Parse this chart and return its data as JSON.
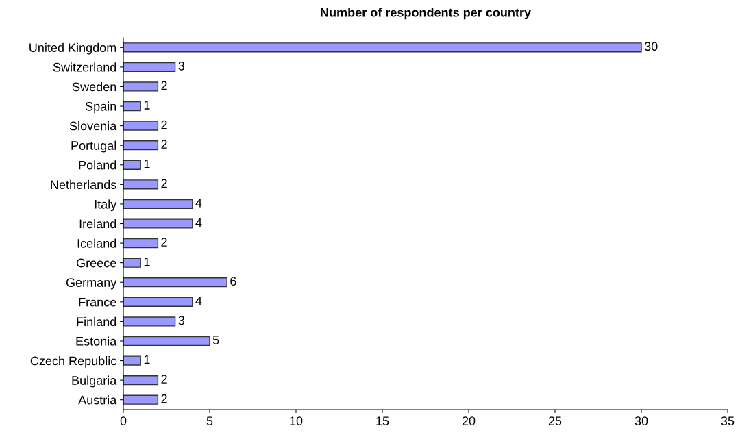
{
  "chart_data": {
    "type": "bar",
    "orientation": "horizontal",
    "title": "Number of respondents per country",
    "categories": [
      "United Kingdom",
      "Switzerland",
      "Sweden",
      "Spain",
      "Slovenia",
      "Portugal",
      "Poland",
      "Netherlands",
      "Italy",
      "Ireland",
      "Iceland",
      "Greece",
      "Germany",
      "France",
      "Finland",
      "Estonia",
      "Czech Republic",
      "Bulgaria",
      "Austria"
    ],
    "values": [
      30,
      3,
      2,
      1,
      2,
      2,
      1,
      2,
      4,
      4,
      2,
      1,
      6,
      4,
      3,
      5,
      1,
      2,
      2
    ],
    "color": "#9999ff",
    "xlim": [
      0,
      35
    ],
    "xticks": [
      0,
      5,
      10,
      15,
      20,
      25,
      30,
      35
    ],
    "data_labels": true,
    "grid": false,
    "legend": false
  }
}
